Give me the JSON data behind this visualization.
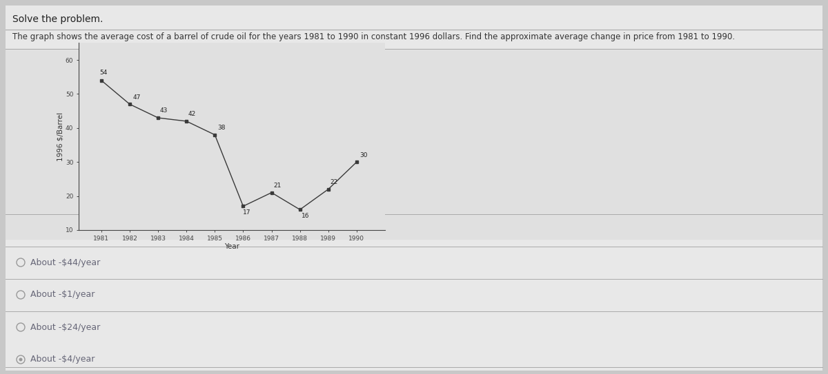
{
  "title": "Solve the problem.",
  "subtitle": "The graph shows the average cost of a barrel of crude oil for the years 1981 to 1990 in constant 1996 dollars. Find the approximate average change in price from 1981 to 1990.",
  "years": [
    1981,
    1982,
    1983,
    1984,
    1985,
    1986,
    1987,
    1988,
    1989,
    1990
  ],
  "values": [
    54,
    47,
    43,
    42,
    38,
    17,
    21,
    16,
    22,
    30
  ],
  "ylabel": "1996 $/Barrel",
  "xlabel": "Year",
  "ylim": [
    10,
    65
  ],
  "yticks": [
    10,
    20,
    30,
    40,
    50,
    60
  ],
  "line_color": "#3a3a3a",
  "marker_color": "#3a3a3a",
  "bg_color": "#c8c8c8",
  "chart_bg": "#dcdcdc",
  "choices_bg": "#dcdcdc",
  "choices": [
    "About -$44/year",
    "About -$1/year",
    "About -$24/year",
    "About -$4/year"
  ],
  "selected_choice": 3,
  "title_fontsize": 10,
  "subtitle_fontsize": 8.5,
  "label_fontsize": 7.5,
  "tick_fontsize": 6.5,
  "annot_fontsize": 6.5,
  "choice_fontsize": 9,
  "text_color": "#222222",
  "subtitle_color": "#333333",
  "choice_color": "#666677",
  "separator_color": "#aaaaaa"
}
